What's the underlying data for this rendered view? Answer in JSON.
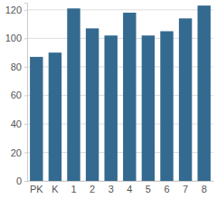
{
  "chart_data": {
    "type": "bar",
    "categories": [
      "PK",
      "K",
      "1",
      "2",
      "3",
      "4",
      "5",
      "6",
      "7",
      "8"
    ],
    "values": [
      87,
      90,
      121,
      107,
      102,
      118,
      102,
      105,
      114,
      123
    ],
    "color": "#346a8f",
    "ylim": [
      0,
      125
    ],
    "yticks": [
      0,
      20,
      40,
      60,
      80,
      100,
      120
    ],
    "grid": true
  }
}
